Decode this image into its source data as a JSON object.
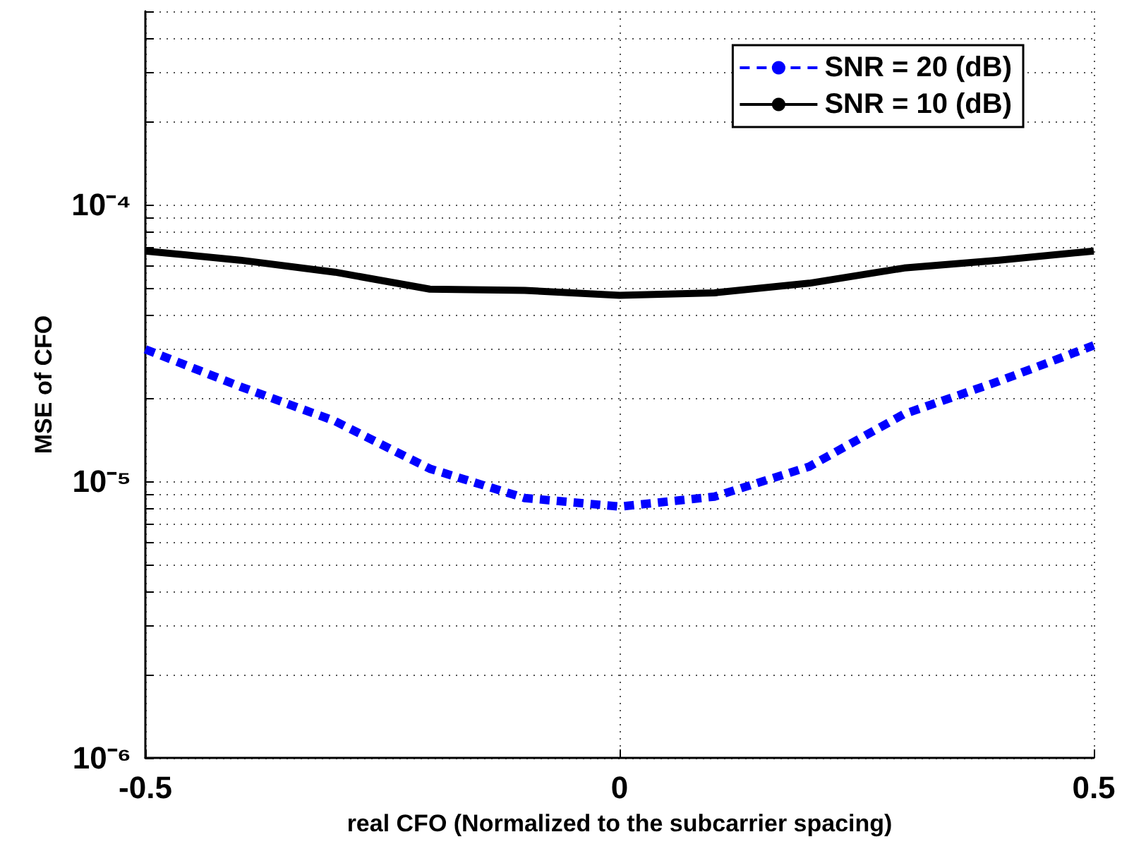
{
  "chart_data": {
    "type": "line",
    "xlabel": "real CFO (Normalized to the subcarrier spacing)",
    "ylabel": "MSE of CFO",
    "x": [
      -0.5,
      -0.4,
      -0.3,
      -0.2,
      -0.1,
      0,
      0.1,
      0.2,
      0.3,
      0.4,
      0.5
    ],
    "series": [
      {
        "name": "SNR = 20 (dB)",
        "color": "#0000ff",
        "line_style": "dashed",
        "values": [
          3e-05,
          2.2e-05,
          1.65e-05,
          1.11e-05,
          8.7e-06,
          8.1e-06,
          8.8e-06,
          1.13e-05,
          1.75e-05,
          2.3e-05,
          3.1e-05
        ]
      },
      {
        "name": "SNR = 10 (dB)",
        "color": "#000000",
        "line_style": "solid",
        "values": [
          6.8e-05,
          6.3e-05,
          5.7e-05,
          4.95e-05,
          4.9e-05,
          4.7e-05,
          4.8e-05,
          5.2e-05,
          5.9e-05,
          6.3e-05,
          6.8e-05
        ]
      }
    ],
    "xlim": [
      -0.5,
      0.5
    ],
    "xticks": [
      -0.5,
      0,
      0.5
    ],
    "ylim": [
      1e-06,
      0.0005
    ],
    "yticks": [
      {
        "value": 1e-06,
        "label": "10⁻⁶"
      },
      {
        "value": 2e-06,
        "label": null
      },
      {
        "value": 3e-06,
        "label": null
      },
      {
        "value": 4e-06,
        "label": null
      },
      {
        "value": 5e-06,
        "label": null
      },
      {
        "value": 6e-06,
        "label": null
      },
      {
        "value": 7e-06,
        "label": null
      },
      {
        "value": 8e-06,
        "label": null
      },
      {
        "value": 9e-06,
        "label": null
      },
      {
        "value": 1e-05,
        "label": "10⁻⁵"
      },
      {
        "value": 2e-05,
        "label": null
      },
      {
        "value": 3e-05,
        "label": null
      },
      {
        "value": 4e-05,
        "label": null
      },
      {
        "value": 5e-05,
        "label": null
      },
      {
        "value": 6e-05,
        "label": null
      },
      {
        "value": 7e-05,
        "label": null
      },
      {
        "value": 8e-05,
        "label": null
      },
      {
        "value": 9e-05,
        "label": null
      },
      {
        "value": 0.0001,
        "label": "10⁻⁴"
      },
      {
        "value": 0.0002,
        "label": null
      },
      {
        "value": 0.0003,
        "label": null
      },
      {
        "value": 0.0004,
        "label": null
      },
      {
        "value": 0.0005,
        "label": null
      }
    ],
    "log": "y",
    "grid": true,
    "legend": "top right",
    "marker": "none"
  }
}
